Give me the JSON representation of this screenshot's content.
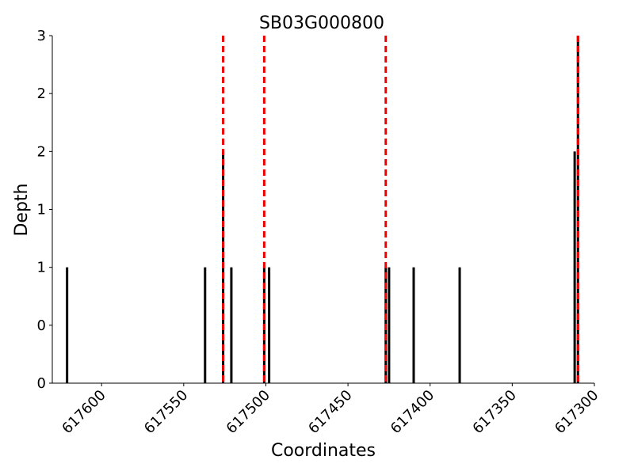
{
  "chart_data": {
    "type": "bar",
    "title": "SB03G000800",
    "x_label": "Coordinates",
    "y_label": "Depth",
    "x": [
      617621,
      617537,
      617526,
      617521,
      617501,
      617498,
      617427,
      617425,
      617410,
      617382,
      617312,
      617310
    ],
    "values": [
      1,
      1,
      2,
      1,
      1,
      1,
      1,
      1,
      1,
      1,
      2,
      3
    ],
    "color": "#000000",
    "xlim": [
      617630,
      617300
    ],
    "xticks": [
      617600,
      617550,
      617500,
      617450,
      617400,
      617350,
      617300
    ],
    "ylim": [
      0,
      3
    ],
    "yticks": [
      0,
      {
        "value": 0.5,
        "label": "0"
      },
      1,
      {
        "value": 1.5,
        "label": "1"
      },
      2,
      {
        "value": 2.5,
        "label": "2"
      },
      3
    ],
    "markers": {
      "x": [
        617526,
        617501,
        617427,
        617310
      ],
      "color": "#ee0000",
      "style": "dashed"
    },
    "grid": false
  }
}
